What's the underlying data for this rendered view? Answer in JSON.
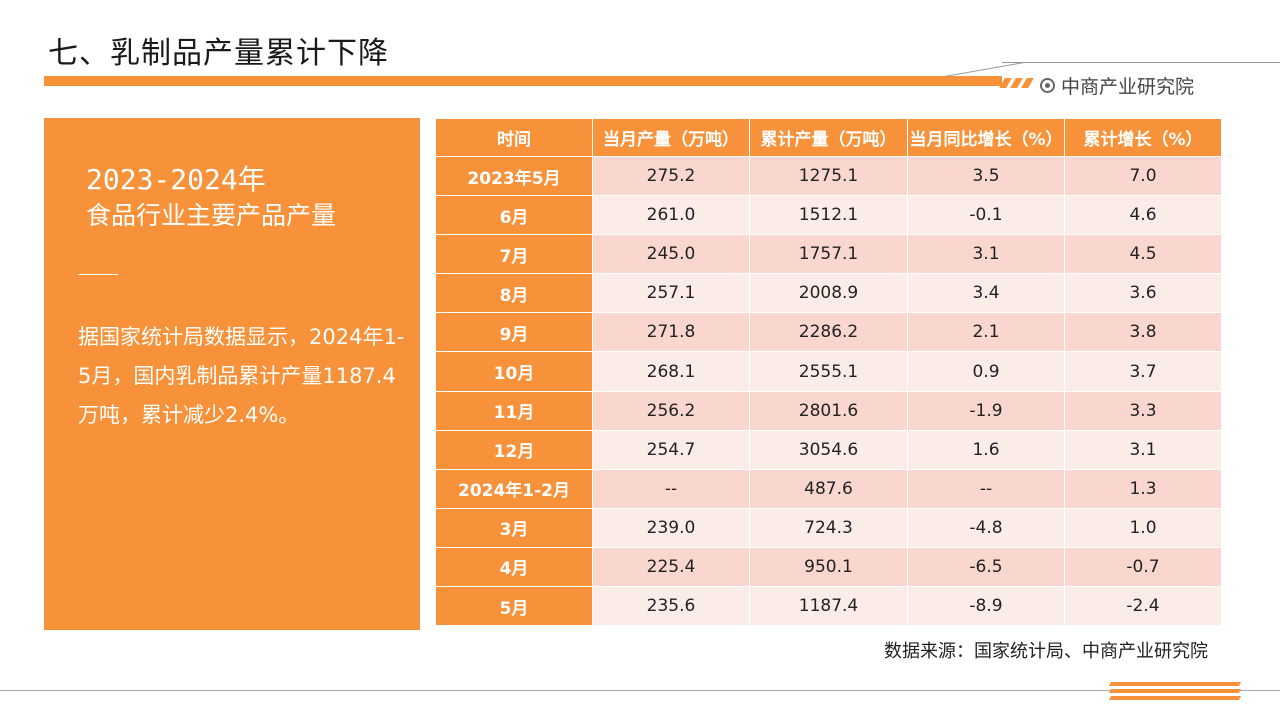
{
  "header": {
    "title": "七、乳制品产量累计下降",
    "brand": "中商产业研究院"
  },
  "panel": {
    "years": "2023-2024年",
    "subtitle": "食品行业主要产品产量",
    "text": "据国家统计局数据显示，2024年1-5月，国内乳制品累计产量1187.4万吨，累计减少2.4%。"
  },
  "table": {
    "columns": [
      "时间",
      "当月产量（万吨）",
      "累计产量（万吨）",
      "当月同比增长（%）",
      "累计增长（%）"
    ],
    "rows": [
      [
        "2023年5月",
        "275.2",
        "1275.1",
        "3.5",
        "7.0"
      ],
      [
        "6月",
        "261.0",
        "1512.1",
        "-0.1",
        "4.6"
      ],
      [
        "7月",
        "245.0",
        "1757.1",
        "3.1",
        "4.5"
      ],
      [
        "8月",
        "257.1",
        "2008.9",
        "3.4",
        "3.6"
      ],
      [
        "9月",
        "271.8",
        "2286.2",
        "2.1",
        "3.8"
      ],
      [
        "10月",
        "268.1",
        "2555.1",
        "0.9",
        "3.7"
      ],
      [
        "11月",
        "256.2",
        "2801.6",
        "-1.9",
        "3.3"
      ],
      [
        "12月",
        "254.7",
        "3054.6",
        "1.6",
        "3.1"
      ],
      [
        "2024年1-2月",
        "--",
        "487.6",
        "--",
        "1.3"
      ],
      [
        "3月",
        "239.0",
        "724.3",
        "-4.8",
        "1.0"
      ],
      [
        "4月",
        "225.4",
        "950.1",
        "-6.5",
        "-0.7"
      ],
      [
        "5月",
        "235.6",
        "1187.4",
        "-8.9",
        "-2.4"
      ]
    ]
  },
  "source": "数据来源：国家统计局、中商产业研究院",
  "colors": {
    "accent": "#F7923A",
    "row_odd": "#F9D7CF",
    "row_even": "#FCECE7"
  },
  "icons": [
    "brand-logo-icon"
  ]
}
